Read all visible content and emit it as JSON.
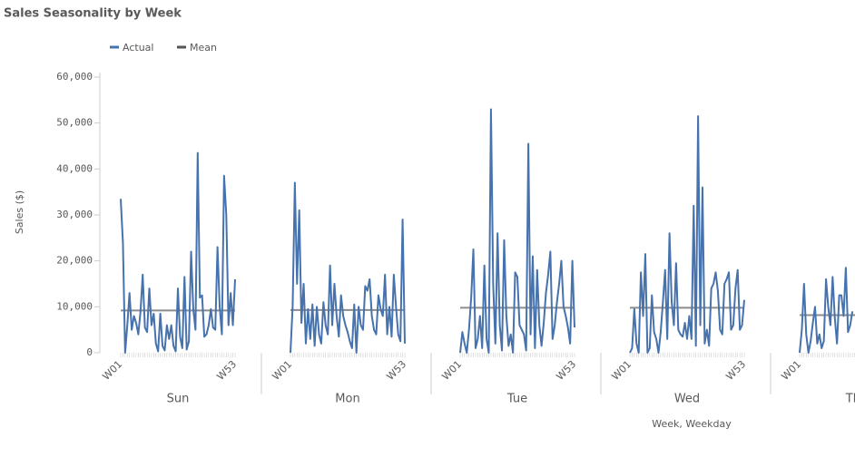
{
  "chart_data": {
    "type": "line",
    "title": "Sales Seasonality by Week",
    "y_label": "Sales ($)",
    "x_label": "Week, Weekday",
    "categories": [
      "Sun",
      "Mon",
      "Tue",
      "Wed",
      "Thu"
    ],
    "week_labels": [
      "W01",
      null,
      null,
      null,
      null,
      null,
      null,
      null,
      null,
      null,
      null,
      null,
      null,
      null,
      null,
      null,
      null,
      null,
      null,
      null,
      null,
      null,
      null,
      null,
      null,
      null,
      null,
      null,
      null,
      null,
      null,
      null,
      null,
      null,
      null,
      null,
      null,
      null,
      null,
      null,
      null,
      null,
      null,
      null,
      null,
      null,
      null,
      null,
      null,
      null,
      null,
      null,
      "W53"
    ],
    "ylim": [
      0,
      60000
    ],
    "yticks": [
      0,
      {
        "value": 10000,
        "label": "10,000"
      },
      {
        "value": 20000,
        "label": "20,000"
      },
      {
        "value": 30000,
        "label": "30,000"
      },
      {
        "value": 40000,
        "label": "40,000"
      },
      {
        "value": 50000,
        "label": "50,000"
      },
      {
        "value": 60000,
        "label": "60,000"
      }
    ],
    "series": [
      {
        "name": "Actual",
        "color": "#4672ad",
        "values": [
          [
            33500,
            24000,
            0,
            6000,
            13000,
            5000,
            8000,
            6500,
            4000,
            9000,
            17000,
            5500,
            4500,
            14000,
            6000,
            8500,
            2000,
            300,
            8500,
            1500,
            500,
            6000,
            3000,
            6000,
            1500,
            300,
            14000,
            3500,
            1000,
            16500,
            700,
            2500,
            22000,
            9500,
            5000,
            43500,
            12000,
            12500,
            3500,
            4000,
            6000,
            9500,
            5500,
            5000,
            23000,
            10000,
            4000,
            38500,
            30000,
            6000,
            13000,
            6000,
            16000
          ],
          [
            0,
            10000,
            37000,
            15000,
            31000,
            6500,
            15000,
            2000,
            9500,
            3000,
            10500,
            1500,
            10000,
            4000,
            2000,
            11000,
            6000,
            4000,
            19000,
            6000,
            15000,
            8000,
            3500,
            12500,
            8000,
            6000,
            4500,
            2500,
            1000,
            10500,
            0,
            10000,
            6000,
            5000,
            14500,
            13500,
            16000,
            8000,
            5000,
            4000,
            12500,
            9500,
            8000,
            17000,
            4000,
            10000,
            3500,
            17000,
            10000,
            4000,
            2500,
            29000,
            2000
          ],
          [
            0,
            4500,
            2000,
            0,
            5000,
            12000,
            22500,
            1000,
            3000,
            8000,
            1000,
            19000,
            3000,
            0,
            53000,
            15000,
            2000,
            26000,
            6000,
            500,
            24500,
            8000,
            1500,
            4000,
            0,
            17500,
            16500,
            6000,
            5000,
            4000,
            500,
            45500,
            4000,
            21000,
            1000,
            18000,
            6000,
            1500,
            6500,
            13000,
            17000,
            22000,
            3000,
            6000,
            11000,
            15000,
            20000,
            10000,
            8000,
            5500,
            2000,
            20000,
            5500
          ],
          [
            0,
            1000,
            9500,
            2000,
            0,
            17500,
            8000,
            21500,
            0,
            1000,
            12500,
            4500,
            3000,
            0,
            4500,
            11000,
            18000,
            3000,
            26000,
            11000,
            6000,
            19500,
            5000,
            4000,
            3500,
            6500,
            3000,
            8000,
            3000,
            32000,
            1500,
            51500,
            6000,
            36000,
            2000,
            5000,
            1500,
            14000,
            15000,
            17500,
            13500,
            5000,
            4000,
            15000,
            16000,
            17500,
            5000,
            6000,
            14000,
            18000,
            5000,
            6000,
            11500
          ],
          [
            0,
            5000,
            15000,
            4000,
            0,
            2500,
            6500,
            10000,
            2000,
            4000,
            1000,
            2500,
            16000,
            10000,
            6000,
            16500,
            7500,
            2000,
            12500,
            12500,
            8000,
            18500,
            4500,
            6000,
            9000
          ]
        ]
      },
      {
        "name": "Mean",
        "color": "#555555",
        "values": [
          9200,
          9300,
          9800,
          9800,
          8200
        ]
      }
    ]
  }
}
